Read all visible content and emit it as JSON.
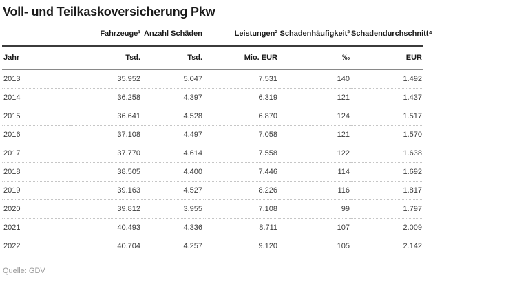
{
  "page": {
    "title": "Voll- und Teilkaskoversicherung Pkw",
    "source": "Quelle: GDV"
  },
  "colors": {
    "background": "#ffffff",
    "text_primary": "#1a1a1a",
    "text_data": "#3c3c3c",
    "text_muted": "#9b9b9b",
    "rule_strong": "#3b3b3b",
    "rule_thin": "#898989",
    "row_divider": "#c6c6c6"
  },
  "chart_data": {
    "type": "table",
    "title": "Voll- und Teilkaskoversicherung Pkw",
    "column_headers": [
      "",
      "Fahrzeuge¹",
      "Anzahl Schäden",
      "Leistungen²",
      "Schadenhäufigkeit³",
      "Schadendurchschnitt⁴"
    ],
    "unit_headers": [
      "Jahr",
      "Tsd.",
      "Tsd.",
      "Mio. EUR",
      "‰",
      "EUR"
    ],
    "rows": [
      [
        "2013",
        "35.952",
        "5.047",
        "7.531",
        "140",
        "1.492"
      ],
      [
        "2014",
        "36.258",
        "4.397",
        "6.319",
        "121",
        "1.437"
      ],
      [
        "2015",
        "36.641",
        "4.528",
        "6.870",
        "124",
        "1.517"
      ],
      [
        "2016",
        "37.108",
        "4.497",
        "7.058",
        "121",
        "1.570"
      ],
      [
        "2017",
        "37.770",
        "4.614",
        "7.558",
        "122",
        "1.638"
      ],
      [
        "2018",
        "38.505",
        "4.400",
        "7.446",
        "114",
        "1.692"
      ],
      [
        "2019",
        "39.163",
        "4.527",
        "8.226",
        "116",
        "1.817"
      ],
      [
        "2020",
        "39.812",
        "3.955",
        "7.108",
        "99",
        "1.797"
      ],
      [
        "2021",
        "40.493",
        "4.336",
        "8.711",
        "107",
        "2.009"
      ],
      [
        "2022",
        "40.704",
        "4.257",
        "9.120",
        "105",
        "2.142"
      ]
    ],
    "source": "Quelle: GDV"
  }
}
